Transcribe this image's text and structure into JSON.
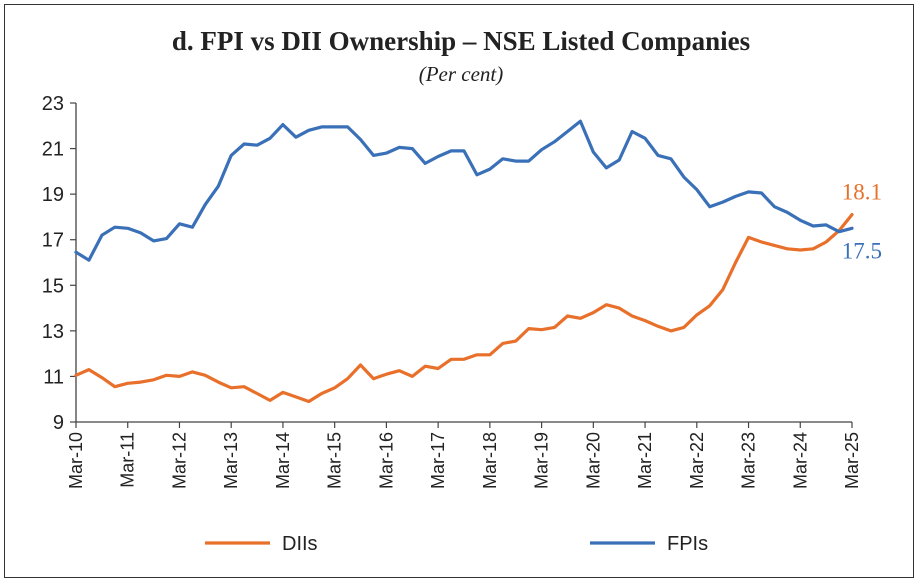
{
  "chart_data": {
    "type": "line",
    "title": "d. FPI vs DII Ownership – NSE Listed Companies",
    "subtitle": "(Per cent)",
    "xlabel": "",
    "ylabel": "",
    "ylim": [
      9,
      23
    ],
    "y_ticks": [
      "9",
      "11",
      "13",
      "15",
      "17",
      "19",
      "21",
      "23"
    ],
    "x_tick_labels": [
      "Mar-10",
      "Mar-11",
      "Mar-12",
      "Mar-13",
      "Mar-14",
      "Mar-15",
      "Mar-16",
      "Mar-17",
      "Mar-18",
      "Mar-19",
      "Mar-20",
      "Mar-21",
      "Mar-22",
      "Mar-23",
      "Mar-24",
      "Mar-25"
    ],
    "x_start": 2010.0,
    "x_step": 0.25,
    "series": [
      {
        "name": "DIIs",
        "color": "#e8702a",
        "values": [
          11.05,
          11.3,
          10.95,
          10.55,
          10.7,
          10.75,
          10.85,
          11.05,
          11.0,
          11.2,
          11.05,
          10.75,
          10.5,
          10.55,
          10.25,
          9.95,
          10.3,
          10.1,
          9.9,
          10.25,
          10.5,
          10.9,
          11.5,
          10.9,
          11.1,
          11.25,
          11.0,
          11.45,
          11.35,
          11.75,
          11.75,
          11.95,
          11.95,
          12.45,
          12.55,
          13.1,
          13.05,
          13.15,
          13.65,
          13.55,
          13.8,
          14.15,
          14.0,
          13.65,
          13.45,
          13.2,
          13.0,
          13.15,
          13.7,
          14.1,
          14.8,
          16.0,
          17.1,
          16.9,
          16.75,
          16.6,
          16.55,
          16.6,
          16.9,
          17.4,
          18.1
        ]
      },
      {
        "name": "FPIs",
        "color": "#3a70b8",
        "values": [
          16.45,
          16.1,
          17.2,
          17.55,
          17.5,
          17.3,
          16.95,
          17.05,
          17.7,
          17.55,
          18.55,
          19.35,
          20.7,
          21.2,
          21.15,
          21.45,
          22.05,
          21.5,
          21.8,
          21.95,
          21.95,
          21.95,
          21.4,
          20.7,
          20.8,
          21.05,
          21.0,
          20.35,
          20.65,
          20.9,
          20.9,
          19.85,
          20.1,
          20.55,
          20.45,
          20.45,
          20.95,
          21.3,
          21.75,
          22.2,
          20.85,
          20.15,
          20.5,
          21.75,
          21.45,
          20.7,
          20.55,
          19.75,
          19.2,
          18.45,
          18.65,
          18.9,
          19.1,
          19.05,
          18.45,
          18.2,
          17.85,
          17.6,
          17.65,
          17.35,
          17.5
        ]
      }
    ],
    "annotations": [
      {
        "text": "18.1",
        "series": "DIIs"
      },
      {
        "text": "17.5",
        "series": "FPIs"
      }
    ],
    "legend": {
      "placement": "bottom",
      "items": [
        "DIIs",
        "FPIs"
      ]
    },
    "grid": false
  }
}
